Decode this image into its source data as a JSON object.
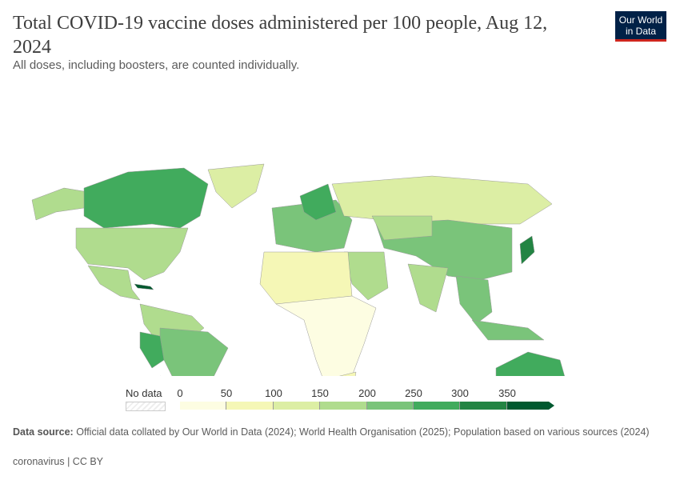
{
  "header": {
    "title": "Total COVID-19 vaccine doses administered per 100 people, Aug 12, 2024",
    "subtitle": "All doses, including boosters, are counted individually."
  },
  "logo": {
    "line1": "Our World",
    "line2": "in Data"
  },
  "legend": {
    "no_data": "No data",
    "ticks": [
      "0",
      "50",
      "100",
      "150",
      "200",
      "250",
      "300",
      "350"
    ],
    "colors": [
      "#fdfde2",
      "#f5f7b6",
      "#dcee a4",
      "#b0dc8e",
      "#7ac47a",
      "#41ab5d",
      "#238443",
      "#00592f"
    ]
  },
  "footer": {
    "source_label": "Data source:",
    "source_text": "Official data collated by Our World in Data (2024); World Health Organisation (2025); Population based on various sources (2024)",
    "license": "coronavirus | CC BY"
  }
}
